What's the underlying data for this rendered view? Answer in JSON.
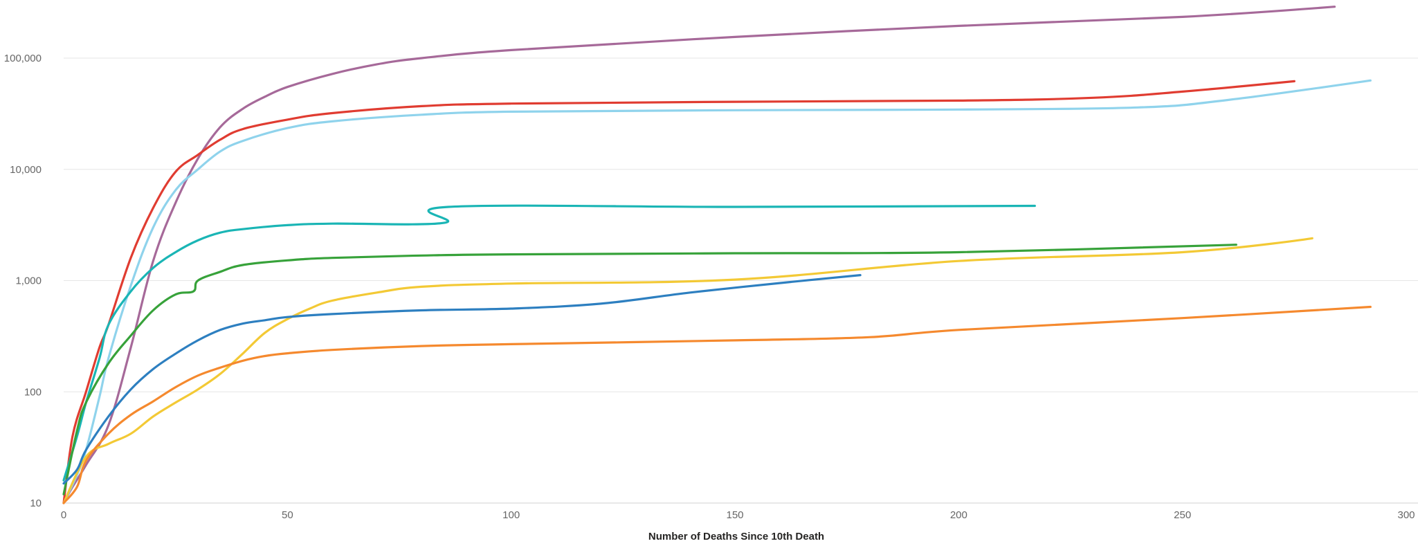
{
  "chart_data": {
    "type": "line",
    "title": "",
    "xlabel": "Number of Deaths Since 10th Death",
    "ylabel": "",
    "x_ticks": [
      0,
      50,
      100,
      150,
      200,
      250,
      300
    ],
    "x_tick_labels": [
      "0",
      "50",
      "100",
      "150",
      "200",
      "250",
      "300"
    ],
    "y_ticks": [
      10,
      100,
      1000,
      10000,
      100000
    ],
    "y_tick_labels": [
      "10",
      "100",
      "1,000",
      "10,000",
      "100,000"
    ],
    "xlim": [
      0,
      300
    ],
    "ylim": [
      10,
      300000
    ],
    "y_scale": "log",
    "grid": true,
    "legend": "none",
    "series": [
      {
        "color": "#a66999",
        "x": [
          0,
          2,
          5,
          10,
          15,
          20,
          25,
          30,
          35,
          40,
          45,
          50,
          60,
          70,
          80,
          100,
          150,
          200,
          250,
          284
        ],
        "y": [
          10,
          14,
          22,
          50,
          250,
          1500,
          5000,
          12500,
          24000,
          35000,
          45000,
          55000,
          72000,
          88000,
          100000,
          118000,
          155000,
          195000,
          235000,
          290000
        ]
      },
      {
        "color": "#e03c31",
        "x": [
          0,
          2,
          5,
          8,
          10,
          15,
          20,
          25,
          30,
          35,
          40,
          50,
          60,
          80,
          100,
          150,
          200,
          230,
          250,
          275
        ],
        "y": [
          10,
          40,
          100,
          250,
          400,
          1600,
          4500,
          9500,
          13500,
          18500,
          23000,
          28000,
          32000,
          37000,
          39000,
          40500,
          41500,
          44000,
          50000,
          62000
        ]
      },
      {
        "color": "#8fd3ec",
        "x": [
          0,
          3,
          5,
          8,
          10,
          15,
          20,
          25,
          30,
          35,
          40,
          50,
          60,
          80,
          100,
          150,
          200,
          240,
          260,
          292
        ],
        "y": [
          10,
          18,
          30,
          90,
          200,
          900,
          3000,
          6500,
          10000,
          14500,
          18000,
          23500,
          27000,
          31000,
          33000,
          34000,
          34500,
          36000,
          42000,
          63000
        ]
      },
      {
        "color": "#1ab5b5",
        "x": [
          0,
          3,
          5,
          8,
          10,
          15,
          20,
          25,
          30,
          35,
          40,
          50,
          60,
          85,
          86,
          150,
          217
        ],
        "y": [
          16,
          40,
          80,
          200,
          400,
          800,
          1300,
          1800,
          2300,
          2700,
          2900,
          3150,
          3250,
          3300,
          4600,
          4600,
          4700
        ]
      },
      {
        "color": "#37a23a",
        "x": [
          0,
          3,
          5,
          10,
          15,
          20,
          25,
          29,
          30,
          35,
          40,
          50,
          60,
          80,
          100,
          150,
          200,
          262
        ],
        "y": [
          12,
          45,
          80,
          180,
          320,
          540,
          750,
          800,
          1000,
          1200,
          1380,
          1520,
          1600,
          1680,
          1720,
          1760,
          1800,
          2100
        ]
      },
      {
        "color": "#f3c935",
        "x": [
          0,
          5,
          10,
          15,
          20,
          25,
          30,
          35,
          40,
          45,
          50,
          55,
          60,
          70,
          80,
          100,
          150,
          200,
          250,
          279
        ],
        "y": [
          10,
          26,
          34,
          42,
          60,
          80,
          105,
          145,
          220,
          340,
          450,
          560,
          660,
          780,
          880,
          940,
          1020,
          1500,
          1800,
          2400
        ]
      },
      {
        "color": "#2d7fc0",
        "x": [
          0,
          3,
          5,
          10,
          15,
          20,
          25,
          30,
          35,
          40,
          45,
          50,
          60,
          80,
          100,
          120,
          140,
          160,
          178
        ],
        "y": [
          15,
          20,
          30,
          60,
          105,
          160,
          220,
          290,
          360,
          410,
          440,
          470,
          500,
          540,
          560,
          620,
          780,
          950,
          1120
        ]
      },
      {
        "color": "#f5892e",
        "x": [
          0,
          3,
          5,
          10,
          15,
          20,
          25,
          30,
          35,
          40,
          45,
          50,
          60,
          80,
          100,
          150,
          180,
          200,
          250,
          292
        ],
        "y": [
          10,
          14,
          24,
          42,
          62,
          82,
          110,
          140,
          165,
          190,
          210,
          222,
          238,
          258,
          268,
          290,
          310,
          360,
          460,
          580
        ]
      }
    ]
  }
}
